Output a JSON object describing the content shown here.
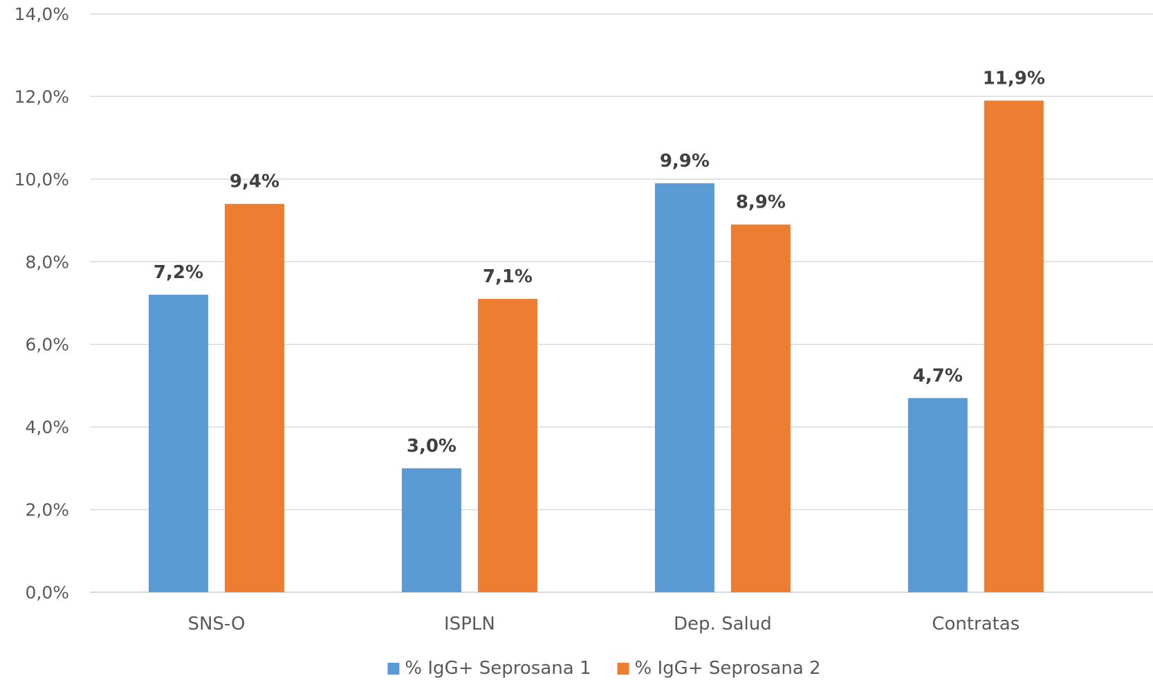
{
  "chart_data": {
    "type": "bar",
    "categories": [
      "SNS-O",
      "ISPLN",
      "Dep. Salud",
      "Contratas"
    ],
    "series": [
      {
        "name": "% IgG+ Seprosana 1",
        "values": [
          7.2,
          3.0,
          9.9,
          4.7
        ],
        "labels": [
          "7,2%",
          "3,0%",
          "9,9%",
          "4,7%"
        ],
        "color": "#5b9bd5"
      },
      {
        "name": "% IgG+ Seprosana 2",
        "values": [
          9.4,
          7.1,
          8.9,
          11.9
        ],
        "labels": [
          "9,4%",
          "7,1%",
          "8,9%",
          "11,9%"
        ],
        "color": "#ed7d31"
      }
    ],
    "ylim": [
      0,
      14
    ],
    "yticks": [
      {
        "value": 0,
        "label": "0,0%"
      },
      {
        "value": 2,
        "label": "2,0%"
      },
      {
        "value": 4,
        "label": "4,0%"
      },
      {
        "value": 6,
        "label": "6,0%"
      },
      {
        "value": 8,
        "label": "8,0%"
      },
      {
        "value": 10,
        "label": "10,0%"
      },
      {
        "value": 12,
        "label": "12,0%"
      },
      {
        "value": 14,
        "label": "14,0%"
      }
    ],
    "title": "",
    "xlabel": "",
    "ylabel": "",
    "grid": true,
    "legend_position": "bottom"
  }
}
